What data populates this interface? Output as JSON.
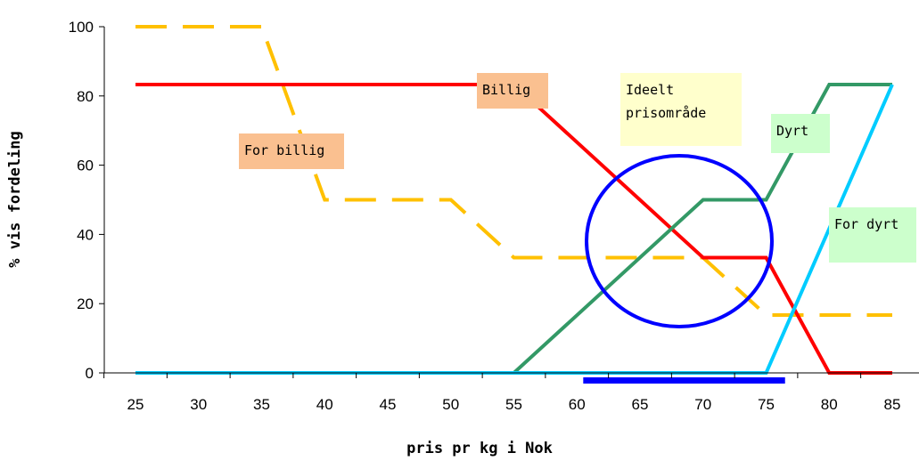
{
  "chart_data": {
    "type": "line",
    "xlabel": "pris pr kg i Nok",
    "ylabel": "% vis fordeling",
    "x_ticks": [
      25,
      30,
      35,
      40,
      45,
      50,
      55,
      60,
      65,
      70,
      75,
      80,
      85
    ],
    "y_ticks": [
      0,
      20,
      40,
      60,
      80,
      100
    ],
    "xlim": [
      25,
      85
    ],
    "ylim": [
      0,
      100
    ],
    "grid": false,
    "series": [
      {
        "name": "For billig",
        "color": "#FFC000",
        "dashed": true,
        "x": [
          25,
          35,
          40,
          50,
          55,
          70,
          75,
          80,
          85
        ],
        "values": [
          100,
          100,
          50,
          50,
          33.3,
          33.3,
          16.7,
          16.7,
          16.7
        ]
      },
      {
        "name": "Billig",
        "color": "#FF0000",
        "dashed": false,
        "x": [
          25,
          55,
          70,
          75,
          80,
          85
        ],
        "values": [
          83.3,
          83.3,
          33.3,
          33.3,
          0,
          0
        ]
      },
      {
        "name": "Dyrt",
        "color": "#339966",
        "dashed": false,
        "x": [
          25,
          55,
          70,
          75,
          80,
          85
        ],
        "values": [
          0,
          0,
          50,
          50,
          83.3,
          83.3
        ]
      },
      {
        "name": "For dyrt",
        "color": "#00CCFF",
        "dashed": false,
        "x": [
          25,
          75,
          85
        ],
        "values": [
          0,
          0,
          83.3
        ]
      }
    ],
    "annotations": [
      {
        "name": "for-billig",
        "lines": [
          "For billig"
        ],
        "bg": "#FAC090"
      },
      {
        "name": "billig",
        "lines": [
          "Billig"
        ],
        "bg": "#FAC090"
      },
      {
        "name": "ideelt",
        "lines": [
          "Ideelt",
          "prisområde"
        ],
        "bg": "#FFFFCC"
      },
      {
        "name": "dyrt",
        "lines": [
          "Dyrt"
        ],
        "bg": "#CCFFCC"
      },
      {
        "name": "for-dyrt",
        "lines": [
          "For dyrt"
        ],
        "bg": "#CCFFCC"
      }
    ],
    "ideal_range": {
      "x": [
        60.5,
        76.5
      ],
      "color": "#0000FF"
    },
    "ideal_ellipse": {
      "color": "#0000FF"
    }
  }
}
